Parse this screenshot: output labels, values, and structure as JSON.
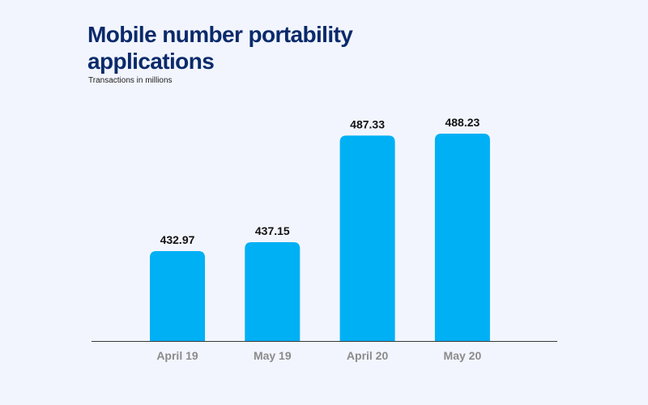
{
  "chart_data": {
    "type": "bar",
    "title": "Mobile number portability applications",
    "subtitle": "Transactions in millions",
    "categories": [
      "April 19",
      "May 19",
      "April 20",
      "May 20"
    ],
    "values": [
      432.97,
      437.15,
      487.33,
      488.23
    ],
    "value_labels": [
      "432.97",
      "437.15",
      "487.33",
      "488.23"
    ],
    "xlabel": "",
    "ylabel": "",
    "grid": false,
    "legend": "none",
    "colors": {
      "bar": "#00b0f5",
      "title": "#0a2a6b",
      "tick_label": "#8b8b8b",
      "background": "#f2f5fd"
    }
  }
}
